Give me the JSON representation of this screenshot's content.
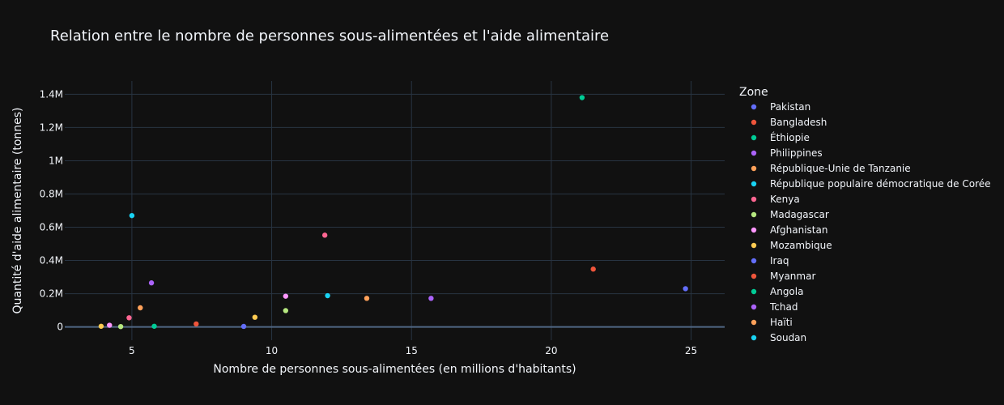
{
  "chart_data": {
    "type": "scatter",
    "title": "Relation entre le nombre de personnes sous-alimentées et l'aide alimentaire",
    "xlabel": "Nombre de personnes sous-alimentées (en millions d'habitants)",
    "ylabel": "Quantité d'aide alimentaire (tonnes)",
    "xlim": [
      2.6,
      26.2
    ],
    "ylim": [
      -80000,
      1480000
    ],
    "x_ticks": [
      {
        "value": 5,
        "label": "5"
      },
      {
        "value": 10,
        "label": "10"
      },
      {
        "value": 15,
        "label": "15"
      },
      {
        "value": 20,
        "label": "20"
      },
      {
        "value": 25,
        "label": "25"
      }
    ],
    "y_ticks": [
      {
        "value": 0,
        "label": "0"
      },
      {
        "value": 200000,
        "label": "0.2M"
      },
      {
        "value": 400000,
        "label": "0.4M"
      },
      {
        "value": 600000,
        "label": "0.6M"
      },
      {
        "value": 800000,
        "label": "0.8M"
      },
      {
        "value": 1000000,
        "label": "1M"
      },
      {
        "value": 1200000,
        "label": "1.2M"
      },
      {
        "value": 1400000,
        "label": "1.4M"
      }
    ],
    "grid": true,
    "legend_title": "Zone",
    "legend_position": "right",
    "series": [
      {
        "name": "Pakistan",
        "color": "#636efa",
        "points": [
          [
            24.8,
            230000
          ]
        ]
      },
      {
        "name": "Bangladesh",
        "color": "#EF553B",
        "points": [
          [
            21.5,
            348000
          ]
        ]
      },
      {
        "name": "Éthiopie",
        "color": "#00cc96",
        "points": [
          [
            21.1,
            1380000
          ]
        ]
      },
      {
        "name": "Philippines",
        "color": "#ab63fa",
        "points": [
          [
            15.7,
            172000
          ]
        ]
      },
      {
        "name": "République-Unie de Tanzanie",
        "color": "#FFA15A",
        "points": [
          [
            13.4,
            172000
          ]
        ]
      },
      {
        "name": "République populaire démocratique de Corée",
        "color": "#19d3f3",
        "points": [
          [
            12.0,
            188000
          ]
        ]
      },
      {
        "name": "Kenya",
        "color": "#FF6692",
        "points": [
          [
            11.9,
            552000
          ]
        ]
      },
      {
        "name": "Madagascar",
        "color": "#B6E880",
        "points": [
          [
            10.5,
            98000
          ]
        ]
      },
      {
        "name": "Afghanistan",
        "color": "#FF97FF",
        "points": [
          [
            10.5,
            185000
          ]
        ]
      },
      {
        "name": "Mozambique",
        "color": "#FECB52",
        "points": [
          [
            9.4,
            58000
          ]
        ]
      },
      {
        "name": "Iraq",
        "color": "#636efa",
        "points": [
          [
            9.0,
            3000
          ]
        ]
      },
      {
        "name": "Myanmar",
        "color": "#EF553B",
        "points": [
          [
            7.3,
            18000
          ]
        ]
      },
      {
        "name": "Angola",
        "color": "#00cc96",
        "points": [
          [
            5.8,
            4000
          ]
        ]
      },
      {
        "name": "Tchad",
        "color": "#ab63fa",
        "points": [
          [
            5.7,
            265000
          ]
        ]
      },
      {
        "name": "Haïti",
        "color": "#FFA15A",
        "points": [
          [
            5.3,
            115000
          ]
        ]
      },
      {
        "name": "Soudan",
        "color": "#19d3f3",
        "points": [
          [
            5.0,
            670000
          ]
        ]
      },
      {
        "name": "",
        "color": "#FF6692",
        "points": [
          [
            4.9,
            55000
          ]
        ]
      },
      {
        "name": "",
        "color": "#B6E880",
        "points": [
          [
            4.6,
            2000
          ]
        ]
      },
      {
        "name": "",
        "color": "#FF97FF",
        "points": [
          [
            4.2,
            10000
          ]
        ]
      },
      {
        "name": "",
        "color": "#FECB52",
        "points": [
          [
            3.9,
            4000
          ]
        ]
      }
    ]
  }
}
